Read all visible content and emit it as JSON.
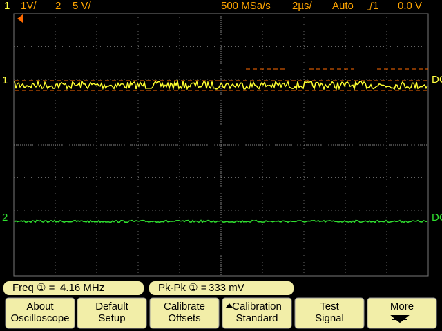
{
  "header": {
    "ch1_num": "1",
    "ch1_scale": "1V/",
    "ch2_num": "2",
    "ch2_scale": "5 V/",
    "sample_rate": "500 MSa/s",
    "timebase": "2µs/",
    "trigger_mode": "Auto",
    "trigger_source": "1",
    "trigger_level": "0.0 V"
  },
  "markers": {
    "ch1": "1",
    "ch2": "2",
    "ch1_coupling": "DC",
    "ch2_coupling": "DC"
  },
  "measurements": [
    {
      "label": "Freq ① =",
      "value": "4.16 MHz"
    },
    {
      "label": "Pk-Pk ① =",
      "value": "333 mV"
    }
  ],
  "softkeys": [
    {
      "line1": "About",
      "line2": "Oscilloscope"
    },
    {
      "line1": "Default",
      "line2": "Setup"
    },
    {
      "line1": "Calibrate",
      "line2": "Offsets"
    },
    {
      "line1": "Calibration",
      "line2": "Standard"
    },
    {
      "line1": "Test",
      "line2": "Signal"
    },
    {
      "line1": "More"
    }
  ]
}
